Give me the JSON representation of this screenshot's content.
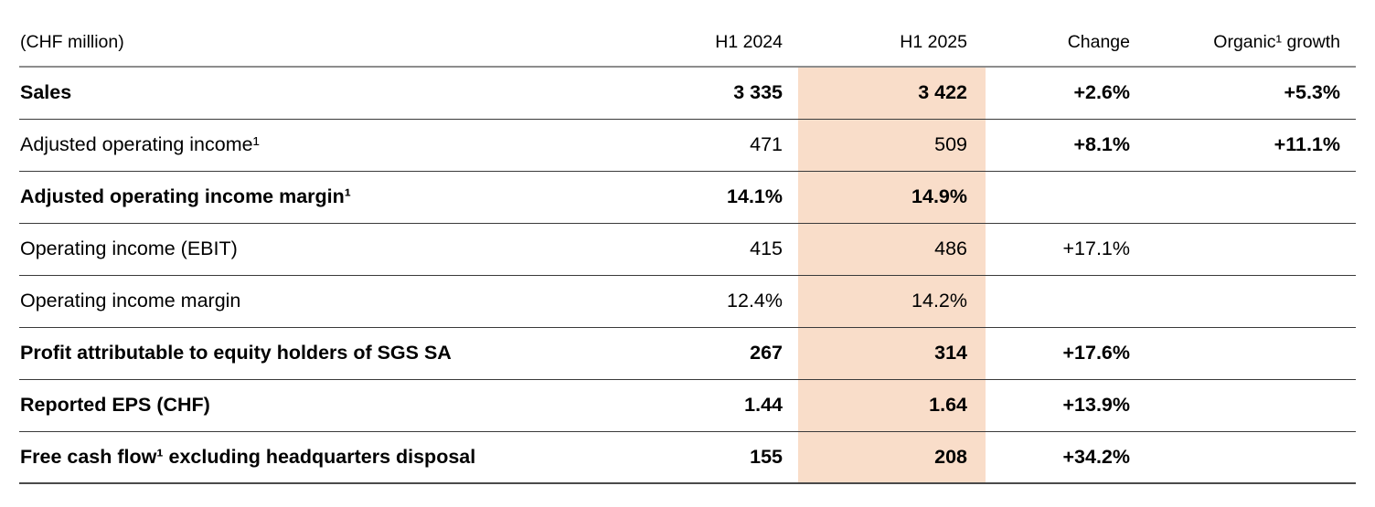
{
  "table": {
    "unit_label": "(CHF million)",
    "highlight_color": "#f9ddc9",
    "columns": {
      "h1_2024": "H1 2024",
      "h1_2025": "H1 2025",
      "change": "Change",
      "organic_growth": "Organic¹ growth"
    },
    "rows": [
      {
        "label": "Sales",
        "h1_2024": "3 335",
        "h1_2025": "3 422",
        "change": "+2.6%",
        "organic_growth": "+5.3%"
      },
      {
        "label": "Adjusted operating income¹",
        "h1_2024": "471",
        "h1_2025": "509",
        "change": "+8.1%",
        "organic_growth": "+11.1%"
      },
      {
        "label": "Adjusted operating income margin¹",
        "h1_2024": "14.1%",
        "h1_2025": "14.9%",
        "change": "",
        "organic_growth": ""
      },
      {
        "label": "Operating income (EBIT)",
        "h1_2024": "415",
        "h1_2025": "486",
        "change": "+17.1%",
        "organic_growth": ""
      },
      {
        "label": "Operating income margin",
        "h1_2024": "12.4%",
        "h1_2025": "14.2%",
        "change": "",
        "organic_growth": ""
      },
      {
        "label": "Profit attributable to equity holders of SGS SA",
        "h1_2024": "267",
        "h1_2025": "314",
        "change": "+17.6%",
        "organic_growth": ""
      },
      {
        "label": "Reported EPS (CHF)",
        "h1_2024": "1.44",
        "h1_2025": "1.64",
        "change": "+13.9%",
        "organic_growth": ""
      },
      {
        "label": "Free cash flow¹ excluding headquarters disposal",
        "h1_2024": "155",
        "h1_2025": "208",
        "change": "+34.2%",
        "organic_growth": ""
      }
    ]
  }
}
